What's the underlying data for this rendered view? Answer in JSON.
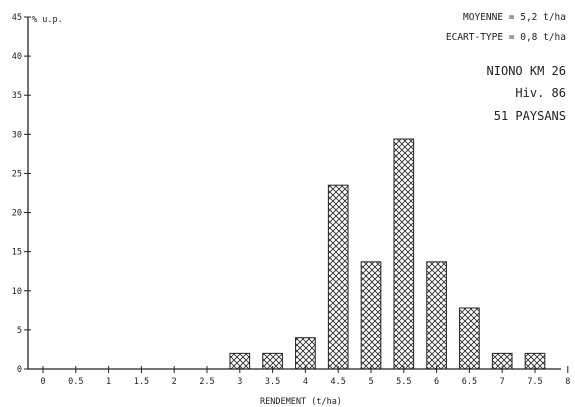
{
  "chart_data": {
    "type": "bar",
    "ylabel": "% u.p.",
    "xlabel": "RENDEMENT (t/ha)",
    "ylim": [
      0,
      45
    ],
    "y_ticks": [
      0,
      5,
      10,
      15,
      20,
      25,
      30,
      35,
      40,
      45
    ],
    "xlim": [
      0,
      8
    ],
    "x_ticks": [
      "0",
      "0.5",
      "1",
      "1.5",
      "2",
      "2.5",
      "3",
      "3.5",
      "4",
      "4.5",
      "5",
      "5.5",
      "6",
      "6.5",
      "7",
      "7.5",
      "8"
    ],
    "categories": [
      "3",
      "3.5",
      "4",
      "4.5",
      "5",
      "5.5",
      "6",
      "6.5",
      "7",
      "7.5"
    ],
    "x": [
      3,
      3.5,
      4,
      4.5,
      5,
      5.5,
      6,
      6.5,
      7,
      7.5
    ],
    "values": [
      2,
      2,
      4,
      23.5,
      13.7,
      29.4,
      13.7,
      7.8,
      2,
      2
    ],
    "grid": false,
    "fill_pattern": "crosshatch",
    "annotations": {
      "mean": "MOYENNE = 5,2 t/ha",
      "std": "ECART-TYPE = 0,8 t/ha",
      "site": "NIONO KM 26",
      "season": "Hiv. 86",
      "count": "51 PAYSANS"
    }
  }
}
